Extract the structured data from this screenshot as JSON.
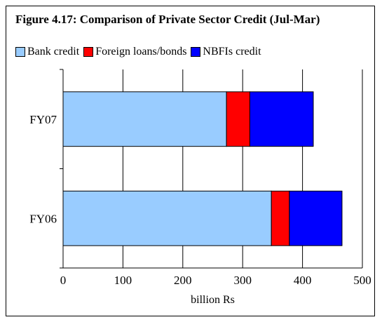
{
  "chart_data": {
    "type": "bar",
    "orientation": "horizontal",
    "stacked": true,
    "title": "Figure 4.17: Comparison of Private Sector Credit (Jul-Mar)",
    "xlabel": "billion Rs",
    "ylabel": "",
    "categories": [
      "FY07",
      "FY06"
    ],
    "series": [
      {
        "name": "Bank credit",
        "color": "#99ccff",
        "values": [
          273,
          348
        ]
      },
      {
        "name": "Foreign loans/bonds",
        "color": "#ff0000",
        "values": [
          39,
          30
        ]
      },
      {
        "name": "NBFIs credit",
        "color": "#0000ff",
        "values": [
          106,
          88
        ]
      }
    ],
    "xlim": [
      0,
      500
    ],
    "xticks": [
      0,
      100,
      200,
      300,
      400,
      500
    ],
    "grid": true,
    "legend_position": "top"
  }
}
